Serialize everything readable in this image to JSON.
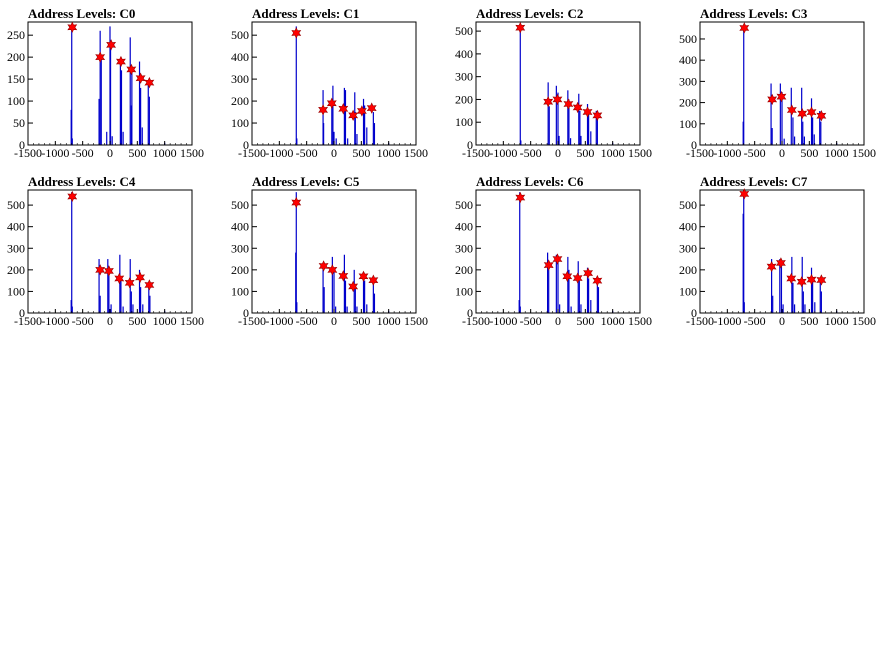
{
  "chart_data": [
    {
      "type": "histogram",
      "title": "Address Levels: C0",
      "xlim": [
        -1500,
        1500
      ],
      "ylim": [
        0,
        280
      ],
      "xticks": [
        -1500,
        -1000,
        -500,
        0,
        500,
        1000,
        1500
      ],
      "yticks": [
        0,
        50,
        100,
        150,
        200,
        250
      ],
      "bars": [
        [
          -710,
          80
        ],
        [
          -700,
          270
        ],
        [
          -690,
          15
        ],
        [
          -200,
          105
        ],
        [
          -180,
          260
        ],
        [
          -160,
          200
        ],
        [
          -60,
          30
        ],
        [
          0,
          270
        ],
        [
          10,
          230
        ],
        [
          40,
          20
        ],
        [
          190,
          190
        ],
        [
          210,
          170
        ],
        [
          240,
          30
        ],
        [
          370,
          245
        ],
        [
          390,
          90
        ],
        [
          400,
          170
        ],
        [
          540,
          190
        ],
        [
          560,
          130
        ],
        [
          590,
          40
        ],
        [
          700,
          145
        ],
        [
          720,
          110
        ],
        [
          1000,
          5
        ]
      ],
      "peaks": [
        [
          -690,
          268
        ],
        [
          -180,
          200
        ],
        [
          20,
          228
        ],
        [
          200,
          190
        ],
        [
          390,
          172
        ],
        [
          560,
          152
        ],
        [
          720,
          142
        ]
      ]
    },
    {
      "type": "histogram",
      "title": "Address Levels: C1",
      "xlim": [
        -1500,
        1500
      ],
      "ylim": [
        0,
        560
      ],
      "xticks": [
        -1500,
        -1000,
        -500,
        0,
        500,
        1000,
        1500
      ],
      "yticks": [
        0,
        100,
        200,
        300,
        400,
        500
      ],
      "bars": [
        [
          -690,
          540
        ],
        [
          -680,
          30
        ],
        [
          -200,
          250
        ],
        [
          -190,
          100
        ],
        [
          -40,
          200
        ],
        [
          -20,
          270
        ],
        [
          0,
          60
        ],
        [
          40,
          30
        ],
        [
          190,
          260
        ],
        [
          210,
          250
        ],
        [
          250,
          30
        ],
        [
          380,
          240
        ],
        [
          390,
          150
        ],
        [
          420,
          50
        ],
        [
          540,
          210
        ],
        [
          560,
          180
        ],
        [
          600,
          80
        ],
        [
          720,
          150
        ],
        [
          740,
          100
        ],
        [
          1000,
          10
        ]
      ],
      "peaks": [
        [
          -690,
          510
        ],
        [
          -200,
          160
        ],
        [
          -40,
          190
        ],
        [
          170,
          165
        ],
        [
          350,
          135
        ],
        [
          510,
          155
        ],
        [
          690,
          168
        ]
      ]
    },
    {
      "type": "histogram",
      "title": "Address Levels: C2",
      "xlim": [
        -1500,
        1500
      ],
      "ylim": [
        0,
        540
      ],
      "xticks": [
        -1500,
        -1000,
        -500,
        0,
        500,
        1000,
        1500
      ],
      "yticks": [
        0,
        100,
        200,
        300,
        400,
        500
      ],
      "bars": [
        [
          -690,
          530
        ],
        [
          -680,
          20
        ],
        [
          -180,
          275
        ],
        [
          -160,
          170
        ],
        [
          -30,
          260
        ],
        [
          0,
          230
        ],
        [
          20,
          40
        ],
        [
          180,
          240
        ],
        [
          200,
          200
        ],
        [
          230,
          30
        ],
        [
          380,
          225
        ],
        [
          400,
          150
        ],
        [
          420,
          40
        ],
        [
          540,
          180
        ],
        [
          560,
          150
        ],
        [
          600,
          60
        ],
        [
          700,
          150
        ],
        [
          720,
          120
        ],
        [
          1000,
          10
        ]
      ],
      "peaks": [
        [
          -690,
          515
        ],
        [
          -180,
          190
        ],
        [
          -10,
          200
        ],
        [
          190,
          180
        ],
        [
          360,
          165
        ],
        [
          540,
          145
        ],
        [
          720,
          130
        ]
      ]
    },
    {
      "type": "histogram",
      "title": "Address Levels: C3",
      "xlim": [
        -1500,
        1500
      ],
      "ylim": [
        0,
        580
      ],
      "xticks": [
        -1500,
        -1000,
        -500,
        0,
        500,
        1000,
        1500
      ],
      "yticks": [
        0,
        100,
        200,
        300,
        400,
        500
      ],
      "bars": [
        [
          -700,
          560
        ],
        [
          -710,
          110
        ],
        [
          -200,
          290
        ],
        [
          -180,
          80
        ],
        [
          -30,
          290
        ],
        [
          0,
          250
        ],
        [
          40,
          30
        ],
        [
          170,
          270
        ],
        [
          200,
          130
        ],
        [
          230,
          40
        ],
        [
          360,
          270
        ],
        [
          380,
          110
        ],
        [
          410,
          40
        ],
        [
          540,
          220
        ],
        [
          560,
          130
        ],
        [
          590,
          50
        ],
        [
          690,
          160
        ],
        [
          710,
          110
        ],
        [
          1000,
          10
        ]
      ],
      "peaks": [
        [
          -690,
          552
        ],
        [
          -180,
          215
        ],
        [
          -10,
          228
        ],
        [
          180,
          165
        ],
        [
          370,
          148
        ],
        [
          540,
          155
        ],
        [
          720,
          138
        ]
      ]
    },
    {
      "type": "histogram",
      "title": "Address Levels: C4",
      "xlim": [
        -1500,
        1500
      ],
      "ylim": [
        0,
        570
      ],
      "xticks": [
        -1500,
        -1000,
        -500,
        0,
        500,
        1000,
        1500
      ],
      "yticks": [
        0,
        100,
        200,
        300,
        400,
        500
      ],
      "bars": [
        [
          -710,
          60
        ],
        [
          -700,
          560
        ],
        [
          -690,
          30
        ],
        [
          -200,
          250
        ],
        [
          -180,
          80
        ],
        [
          -40,
          250
        ],
        [
          -20,
          200
        ],
        [
          20,
          40
        ],
        [
          180,
          270
        ],
        [
          200,
          150
        ],
        [
          240,
          30
        ],
        [
          370,
          250
        ],
        [
          390,
          100
        ],
        [
          420,
          40
        ],
        [
          540,
          200
        ],
        [
          560,
          120
        ],
        [
          600,
          40
        ],
        [
          710,
          130
        ],
        [
          730,
          80
        ],
        [
          1000,
          10
        ]
      ],
      "peaks": [
        [
          -690,
          540
        ],
        [
          -180,
          200
        ],
        [
          -20,
          195
        ],
        [
          170,
          160
        ],
        [
          360,
          140
        ],
        [
          550,
          165
        ],
        [
          720,
          130
        ]
      ]
    },
    {
      "type": "histogram",
      "title": "Address Levels: C5",
      "xlim": [
        -1500,
        1500
      ],
      "ylim": [
        0,
        570
      ],
      "xticks": [
        -1500,
        -1000,
        -500,
        0,
        500,
        1000,
        1500
      ],
      "yticks": [
        0,
        100,
        200,
        300,
        400,
        500
      ],
      "bars": [
        [
          -700,
          280
        ],
        [
          -690,
          560
        ],
        [
          -680,
          50
        ],
        [
          -200,
          230
        ],
        [
          -180,
          120
        ],
        [
          -30,
          260
        ],
        [
          0,
          200
        ],
        [
          30,
          30
        ],
        [
          190,
          270
        ],
        [
          210,
          150
        ],
        [
          240,
          30
        ],
        [
          370,
          200
        ],
        [
          390,
          120
        ],
        [
          420,
          30
        ],
        [
          540,
          190
        ],
        [
          560,
          150
        ],
        [
          600,
          40
        ],
        [
          720,
          140
        ],
        [
          740,
          90
        ],
        [
          1000,
          10
        ]
      ],
      "peaks": [
        [
          -690,
          512
        ],
        [
          -190,
          218
        ],
        [
          -30,
          200
        ],
        [
          170,
          172
        ],
        [
          350,
          123
        ],
        [
          540,
          170
        ],
        [
          720,
          152
        ]
      ]
    },
    {
      "type": "histogram",
      "title": "Address Levels: C6",
      "xlim": [
        -1500,
        1500
      ],
      "ylim": [
        0,
        570
      ],
      "xticks": [
        -1500,
        -1000,
        -500,
        0,
        500,
        1000,
        1500
      ],
      "yticks": [
        0,
        100,
        200,
        300,
        400,
        500
      ],
      "bars": [
        [
          -710,
          60
        ],
        [
          -700,
          560
        ],
        [
          -690,
          30
        ],
        [
          -190,
          280
        ],
        [
          -170,
          200
        ],
        [
          -30,
          270
        ],
        [
          0,
          240
        ],
        [
          30,
          40
        ],
        [
          180,
          260
        ],
        [
          200,
          200
        ],
        [
          240,
          30
        ],
        [
          370,
          240
        ],
        [
          390,
          150
        ],
        [
          420,
          40
        ],
        [
          540,
          210
        ],
        [
          560,
          160
        ],
        [
          600,
          60
        ],
        [
          720,
          160
        ],
        [
          740,
          120
        ],
        [
          1000,
          10
        ]
      ],
      "peaks": [
        [
          -690,
          535
        ],
        [
          -170,
          222
        ],
        [
          -10,
          250
        ],
        [
          170,
          170
        ],
        [
          360,
          162
        ],
        [
          550,
          185
        ],
        [
          720,
          150
        ]
      ]
    },
    {
      "type": "histogram",
      "title": "Address Levels: C7",
      "xlim": [
        -1500,
        1500
      ],
      "ylim": [
        0,
        570
      ],
      "xticks": [
        -1500,
        -1000,
        -500,
        0,
        500,
        1000,
        1500
      ],
      "yticks": [
        0,
        100,
        200,
        300,
        400,
        500
      ],
      "bars": [
        [
          -710,
          460
        ],
        [
          -700,
          560
        ],
        [
          -690,
          50
        ],
        [
          -190,
          250
        ],
        [
          -170,
          80
        ],
        [
          -40,
          250
        ],
        [
          -10,
          220
        ],
        [
          20,
          40
        ],
        [
          180,
          260
        ],
        [
          200,
          140
        ],
        [
          230,
          40
        ],
        [
          370,
          260
        ],
        [
          390,
          100
        ],
        [
          420,
          40
        ],
        [
          540,
          210
        ],
        [
          560,
          150
        ],
        [
          600,
          50
        ],
        [
          700,
          160
        ],
        [
          720,
          100
        ],
        [
          1000,
          10
        ]
      ],
      "peaks": [
        [
          -690,
          552
        ],
        [
          -190,
          215
        ],
        [
          -20,
          232
        ],
        [
          170,
          160
        ],
        [
          360,
          145
        ],
        [
          540,
          155
        ],
        [
          720,
          153
        ]
      ]
    }
  ]
}
